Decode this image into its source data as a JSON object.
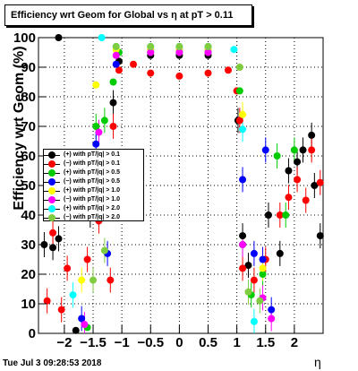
{
  "chart_data": {
    "type": "scatter",
    "title": "Efficiency wrt Geom for Global vs   η at pT > 0.11",
    "ylabel": "Efficiency wrt Geom (%)",
    "xlabel": "η",
    "timestamp": "Tue Jul  3 09:28:53 2018",
    "xlim": [
      -2.45,
      2.5
    ],
    "ylim": [
      0,
      100
    ],
    "xticks": [
      -2,
      -1.5,
      -1,
      -0.5,
      0,
      0.5,
      1,
      1.5,
      2
    ],
    "xtick_labels": [
      "−2",
      "−1.5",
      "−1",
      "−0.5",
      "0",
      "0.5",
      "1",
      "1.5",
      "2"
    ],
    "yticks": [
      0,
      10,
      20,
      30,
      40,
      50,
      60,
      70,
      80,
      90,
      100
    ],
    "ytick_labels": [
      "0",
      "10",
      "20",
      "30",
      "40",
      "50",
      "60",
      "70",
      "80",
      "90",
      "100"
    ],
    "legend_position": "left-middle",
    "series": [
      {
        "name": "(+) with pT/|q| > 0.1",
        "color": "#000000",
        "values": [
          [
            -2.35,
            30
          ],
          [
            -2.2,
            29
          ],
          [
            -2.1,
            32
          ],
          [
            -1.8,
            1
          ],
          [
            -1.55,
            40
          ],
          [
            -1.5,
            58
          ],
          [
            -1.3,
            45
          ],
          [
            -1.15,
            78
          ],
          [
            -1.05,
            92
          ],
          [
            -0.5,
            94
          ],
          [
            0,
            94
          ],
          [
            0.5,
            94
          ],
          [
            1.02,
            72
          ],
          [
            1.1,
            33
          ],
          [
            1.2,
            23
          ],
          [
            1.55,
            40
          ],
          [
            1.75,
            27
          ],
          [
            1.9,
            55
          ],
          [
            2.05,
            58
          ],
          [
            2.15,
            62
          ],
          [
            2.3,
            67
          ],
          [
            2.35,
            50
          ],
          [
            2.45,
            33
          ],
          [
            -2.1,
            100
          ]
        ]
      },
      {
        "name": "(−) with pT/|q| > 0.1",
        "color": "#ff0000",
        "values": [
          [
            -2.3,
            11
          ],
          [
            -2.2,
            34
          ],
          [
            -2.05,
            8
          ],
          [
            -1.95,
            22
          ],
          [
            -1.6,
            25
          ],
          [
            -1.4,
            38
          ],
          [
            -1.2,
            18
          ],
          [
            -1.15,
            70
          ],
          [
            -1.05,
            89
          ],
          [
            -0.8,
            91
          ],
          [
            -0.5,
            88
          ],
          [
            0,
            87
          ],
          [
            0.5,
            88
          ],
          [
            0.85,
            89
          ],
          [
            1.0,
            82
          ],
          [
            1.05,
            72
          ],
          [
            1.1,
            22
          ],
          [
            1.3,
            18
          ],
          [
            1.5,
            25
          ],
          [
            1.75,
            40
          ],
          [
            1.9,
            46
          ],
          [
            2.05,
            52
          ],
          [
            2.2,
            45
          ],
          [
            2.3,
            62
          ],
          [
            2.45,
            51
          ]
        ]
      },
      {
        "name": "(+) with pT/|q| > 0.5",
        "color": "#00cc00",
        "values": [
          [
            -1.6,
            2
          ],
          [
            -1.45,
            70
          ],
          [
            -1.3,
            72
          ],
          [
            -1.15,
            85
          ],
          [
            -1.05,
            95
          ],
          [
            -0.5,
            95
          ],
          [
            0,
            95
          ],
          [
            0.5,
            95
          ],
          [
            1.05,
            82
          ],
          [
            1.1,
            30
          ],
          [
            1.25,
            13
          ],
          [
            1.45,
            20
          ],
          [
            1.7,
            60
          ],
          [
            1.85,
            40
          ],
          [
            2.0,
            62
          ]
        ]
      },
      {
        "name": "(−) with pT/|q| > 0.5",
        "color": "#0000ff",
        "values": [
          [
            -1.7,
            5
          ],
          [
            -1.45,
            64
          ],
          [
            -1.25,
            27
          ],
          [
            -1.1,
            91
          ],
          [
            -0.5,
            96
          ],
          [
            0,
            96
          ],
          [
            0.5,
            96
          ],
          [
            1.1,
            52
          ],
          [
            1.3,
            27
          ],
          [
            1.45,
            25
          ],
          [
            1.5,
            62
          ],
          [
            1.6,
            8
          ]
        ]
      },
      {
        "name": "(+) with pT/|q| > 1.0",
        "color": "#ffff00",
        "values": [
          [
            -1.7,
            18
          ],
          [
            -1.45,
            84
          ],
          [
            -1.1,
            96
          ],
          [
            -0.5,
            96
          ],
          [
            0,
            96
          ],
          [
            0.5,
            96
          ],
          [
            1.1,
            74
          ],
          [
            1.45,
            22
          ]
        ]
      },
      {
        "name": "(−) with pT/|q| > 1.0",
        "color": "#ff00ff",
        "values": [
          [
            -1.65,
            3
          ],
          [
            -1.4,
            68
          ],
          [
            -1.1,
            94
          ],
          [
            -0.5,
            95
          ],
          [
            0,
            95
          ],
          [
            0.5,
            95
          ],
          [
            1.1,
            30
          ],
          [
            1.45,
            12
          ],
          [
            1.6,
            5
          ]
        ]
      },
      {
        "name": "(+) with pT/|q| > 2.0",
        "color": "#00ffff",
        "values": [
          [
            -1.85,
            13
          ],
          [
            -1.35,
            100
          ],
          [
            -1.1,
            97
          ],
          [
            -0.5,
            97
          ],
          [
            0,
            97
          ],
          [
            0.5,
            97
          ],
          [
            0.95,
            96
          ],
          [
            1.1,
            69
          ],
          [
            1.3,
            4
          ]
        ]
      },
      {
        "name": "(−) with pT/|q| > 2.0",
        "color": "#80cc40",
        "values": [
          [
            -1.5,
            18
          ],
          [
            -1.3,
            28
          ],
          [
            -1.1,
            97
          ],
          [
            -0.5,
            97
          ],
          [
            0,
            97
          ],
          [
            0.5,
            97
          ],
          [
            1.05,
            90
          ],
          [
            1.2,
            14
          ],
          [
            1.4,
            11
          ]
        ]
      }
    ]
  }
}
